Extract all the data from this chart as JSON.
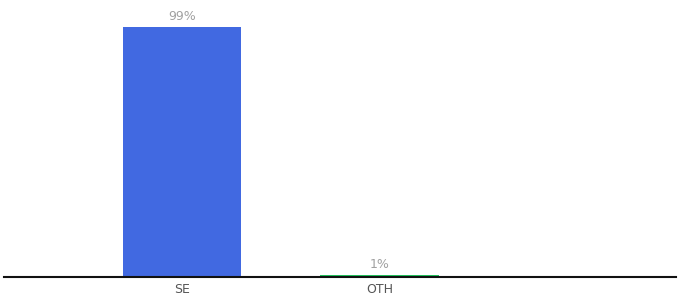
{
  "categories": [
    "SE",
    "OTH"
  ],
  "values": [
    99,
    1
  ],
  "bar_colors": [
    "#4169e1",
    "#22c55e"
  ],
  "value_labels": [
    "99%",
    "1%"
  ],
  "label_color": "#a0a0a0",
  "background_color": "#ffffff",
  "ylim": [
    0,
    108
  ],
  "bar_width": 0.6,
  "label_fontsize": 9,
  "tick_fontsize": 9,
  "axis_line_color": "#111111",
  "xlim": [
    -0.9,
    2.5
  ]
}
